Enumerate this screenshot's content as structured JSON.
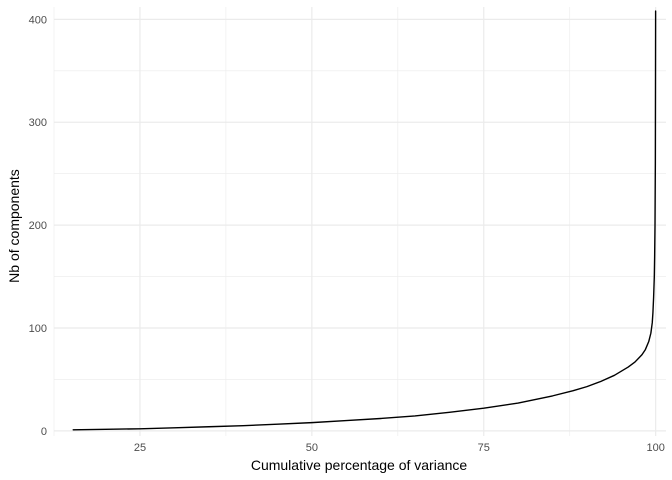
{
  "chart_data": {
    "type": "line",
    "title": "",
    "xlabel": "Cumulative percentage of variance",
    "ylabel": "Nb of components",
    "xlim": [
      12.5,
      101.5
    ],
    "ylim": [
      -5,
      412
    ],
    "x_ticks": [
      25,
      50,
      75,
      100
    ],
    "x_tick_labels": [
      "25",
      "50",
      "75",
      "100"
    ],
    "x_minor_ticks": [
      12.5,
      37.5,
      62.5,
      87.5
    ],
    "y_ticks": [
      0,
      100,
      200,
      300,
      400
    ],
    "y_tick_labels": [
      "0",
      "100",
      "200",
      "300",
      "400"
    ],
    "y_minor_ticks": [
      50,
      150,
      250,
      350
    ],
    "grid": true,
    "legend": "none",
    "line_color": "#000000",
    "grid_color": "#ebebeb",
    "series": [
      {
        "x": [
          15.3,
          20,
          25,
          30,
          35,
          40,
          45,
          50,
          55,
          60,
          65,
          70,
          75,
          80,
          85,
          88,
          90,
          92,
          94,
          95,
          96,
          97,
          98,
          98.5,
          99,
          99.3,
          99.5,
          99.6,
          99.7,
          99.8,
          99.85,
          99.9,
          99.95,
          99.97,
          99.99
        ],
        "y": [
          1,
          1.5,
          2,
          3,
          4,
          5,
          6.5,
          8,
          10,
          12,
          14.5,
          18,
          22,
          27,
          34,
          39,
          43,
          48,
          54,
          58,
          62,
          67,
          74,
          79,
          87,
          95,
          105,
          115,
          130,
          150,
          170,
          200,
          260,
          330,
          408
        ]
      }
    ]
  }
}
